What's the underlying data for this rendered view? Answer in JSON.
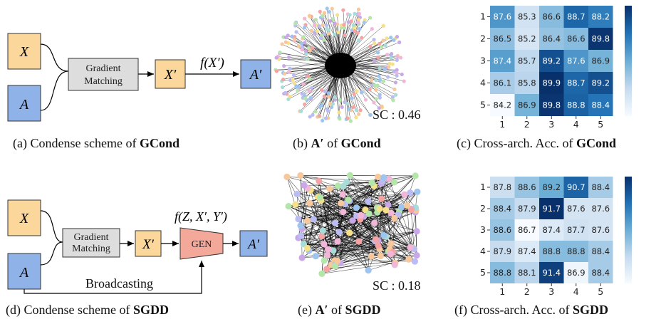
{
  "panels": {
    "a": {
      "input_x": "X",
      "input_a": "A",
      "block_line1": "Gradient",
      "block_line2": "Matching",
      "x_prime": "X′",
      "func": "f(X′)",
      "a_prime": "A′",
      "caption_prefix": "(a)  Condense scheme of ",
      "caption_bold": "GCond"
    },
    "b": {
      "sc": "SC : 0.46",
      "caption_prefix": "(b)  ",
      "caption_math": "A′",
      "caption_mid": " of ",
      "caption_bold": "GCond"
    },
    "c": {
      "caption_prefix": "(c)  Cross-arch. Acc. of ",
      "caption_bold": "GCond"
    },
    "d": {
      "input_x": "X",
      "input_a": "A",
      "block_line1": "Gradient",
      "block_line2": "Matching",
      "x_prime": "X′",
      "func": "f(Z, X′, Y′)",
      "gen": "GEN",
      "a_prime": "A′",
      "broadcast": "Broadcasting",
      "caption_prefix": "(d)  Condense scheme of ",
      "caption_bold": "SGDD"
    },
    "e": {
      "sc": "SC : 0.18",
      "caption_prefix": "(e)  ",
      "caption_math": "A′",
      "caption_mid": " of ",
      "caption_bold": "SGDD"
    },
    "f": {
      "caption_prefix": "(f)  Cross-arch. Acc. of ",
      "caption_bold": "SGDD"
    }
  },
  "colors": {
    "input_box": "#fbd79b",
    "adj_box": "#8fb3e8",
    "matching_box": "#dddddd",
    "gen_box": "#f4a89a",
    "graph_edge": "#000000"
  },
  "chart_data": [
    {
      "type": "heatmap",
      "id": "gcond",
      "row_labels": [
        "1",
        "2",
        "3",
        "4",
        "5"
      ],
      "col_labels": [
        "1",
        "2",
        "3",
        "4",
        "5"
      ],
      "values": [
        [
          87.6,
          85.3,
          86.6,
          88.7,
          88.2
        ],
        [
          86.5,
          85.2,
          86.4,
          86.6,
          89.8
        ],
        [
          87.4,
          85.7,
          89.2,
          87.6,
          86.9
        ],
        [
          86.1,
          85.8,
          89.9,
          88.7,
          89.2
        ],
        [
          84.2,
          86.9,
          89.8,
          88.8,
          88.4
        ]
      ],
      "colormap": "Blues",
      "colorbar": true,
      "vmin": 84.2,
      "vmax": 89.9
    },
    {
      "type": "heatmap",
      "id": "sgdd",
      "row_labels": [
        "1",
        "2",
        "3",
        "4",
        "5"
      ],
      "col_labels": [
        "1",
        "2",
        "3",
        "4",
        "5"
      ],
      "values": [
        [
          87.8,
          88.6,
          89.2,
          90.7,
          88.4
        ],
        [
          88.4,
          87.9,
          91.7,
          87.6,
          87.6
        ],
        [
          88.6,
          86.7,
          87.4,
          87.7,
          87.6
        ],
        [
          87.9,
          87.4,
          88.8,
          88.8,
          88.4
        ],
        [
          88.8,
          88.1,
          91.4,
          86.9,
          88.4
        ]
      ],
      "colormap": "Blues",
      "colorbar": true,
      "vmin": 86.7,
      "vmax": 91.7
    }
  ]
}
